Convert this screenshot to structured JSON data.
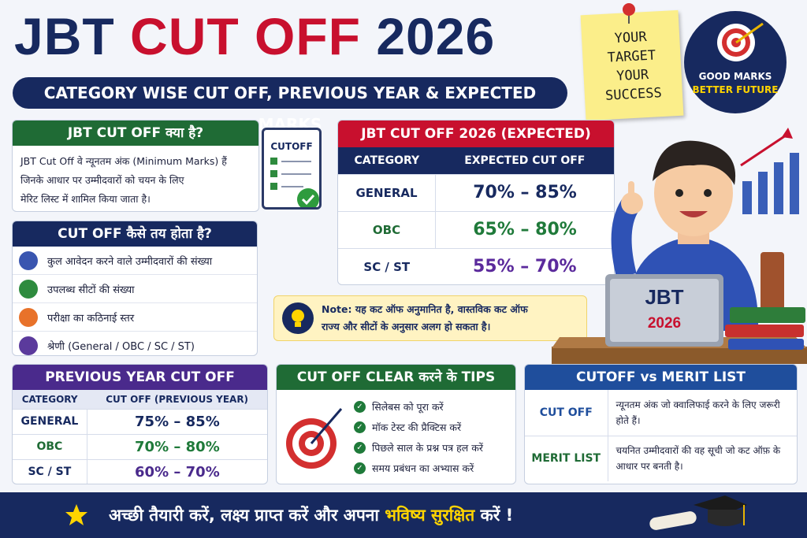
{
  "header": {
    "title_parts": [
      "JBT",
      "CUT OFF",
      "2026"
    ],
    "subtitle": "CATEGORY WISE CUT OFF, PREVIOUS YEAR & EXPECTED MARKS"
  },
  "sticky_note": {
    "lines": [
      "YOUR",
      "TARGET",
      "YOUR",
      "SUCCESS"
    ]
  },
  "badge": {
    "line1": "GOOD MARKS",
    "line2": "BETTER FUTURE"
  },
  "what_is": {
    "title": "JBT CUT OFF क्या है?",
    "lines": [
      "JBT Cut Off वे न्यूनतम अंक (Minimum Marks) हैं",
      "जिनके आधार पर उम्मीदवारों को चयन के लिए",
      "मेरिट लिस्ट में शामिल किया जाता है।"
    ],
    "clipboard_label": "CUTOFF"
  },
  "how_decided": {
    "title": "CUT OFF कैसे तय होता है?",
    "items": [
      "कुल आवेदन करने वाले उम्मीदवारों की संख्या",
      "उपलब्ध सीटों की संख्या",
      "परीक्षा का कठिनाई स्तर",
      "श्रेणी (General / OBC / SC / ST)"
    ]
  },
  "expected": {
    "title": "JBT CUT OFF 2026 (EXPECTED)",
    "headers": [
      "CATEGORY",
      "EXPECTED CUT OFF"
    ],
    "rows": [
      [
        "GENERAL",
        "70% – 85%"
      ],
      [
        "OBC",
        "65% – 80%"
      ],
      [
        "SC / ST",
        "55% – 70%"
      ]
    ]
  },
  "note": {
    "lines": [
      "Note: यह कट ऑफ अनुमानित है, वास्तविक कट ऑफ",
      "राज्य और सीटों के अनुसार अलग हो सकता है।"
    ]
  },
  "laptop": {
    "line1": "JBT",
    "line2": "2026"
  },
  "previous": {
    "title": "PREVIOUS YEAR CUT OFF",
    "headers": [
      "CATEGORY",
      "CUT OFF (PREVIOUS YEAR)"
    ],
    "rows": [
      [
        "GENERAL",
        "75% – 85%"
      ],
      [
        "OBC",
        "70% – 80%"
      ],
      [
        "SC / ST",
        "60% – 70%"
      ]
    ]
  },
  "tips": {
    "title": "CUT OFF CLEAR करने के TIPS",
    "items": [
      "सिलेबस को पूरा करें",
      "मॉक टेस्ट की प्रैक्टिस करें",
      "पिछले साल के प्रश्न पत्र हल करें",
      "समय प्रबंधन का अभ्यास करें"
    ]
  },
  "compare": {
    "title": "CUTOFF vs MERIT LIST",
    "rows": [
      [
        "CUT OFF",
        "न्यूनतम अंक जो क्वालिफाई करने के लिए जरूरी होते हैं।"
      ],
      [
        "MERIT LIST",
        "चयनित उम्मीदवारों की वह सूची जो कट ऑफ़ के आधार पर बनती है।"
      ]
    ]
  },
  "footer": {
    "parts": [
      "अच्छी तैयारी करें, लक्ष्य प्राप्त करें और अपना",
      "भविष्य सुरक्षित",
      "करें !"
    ]
  }
}
